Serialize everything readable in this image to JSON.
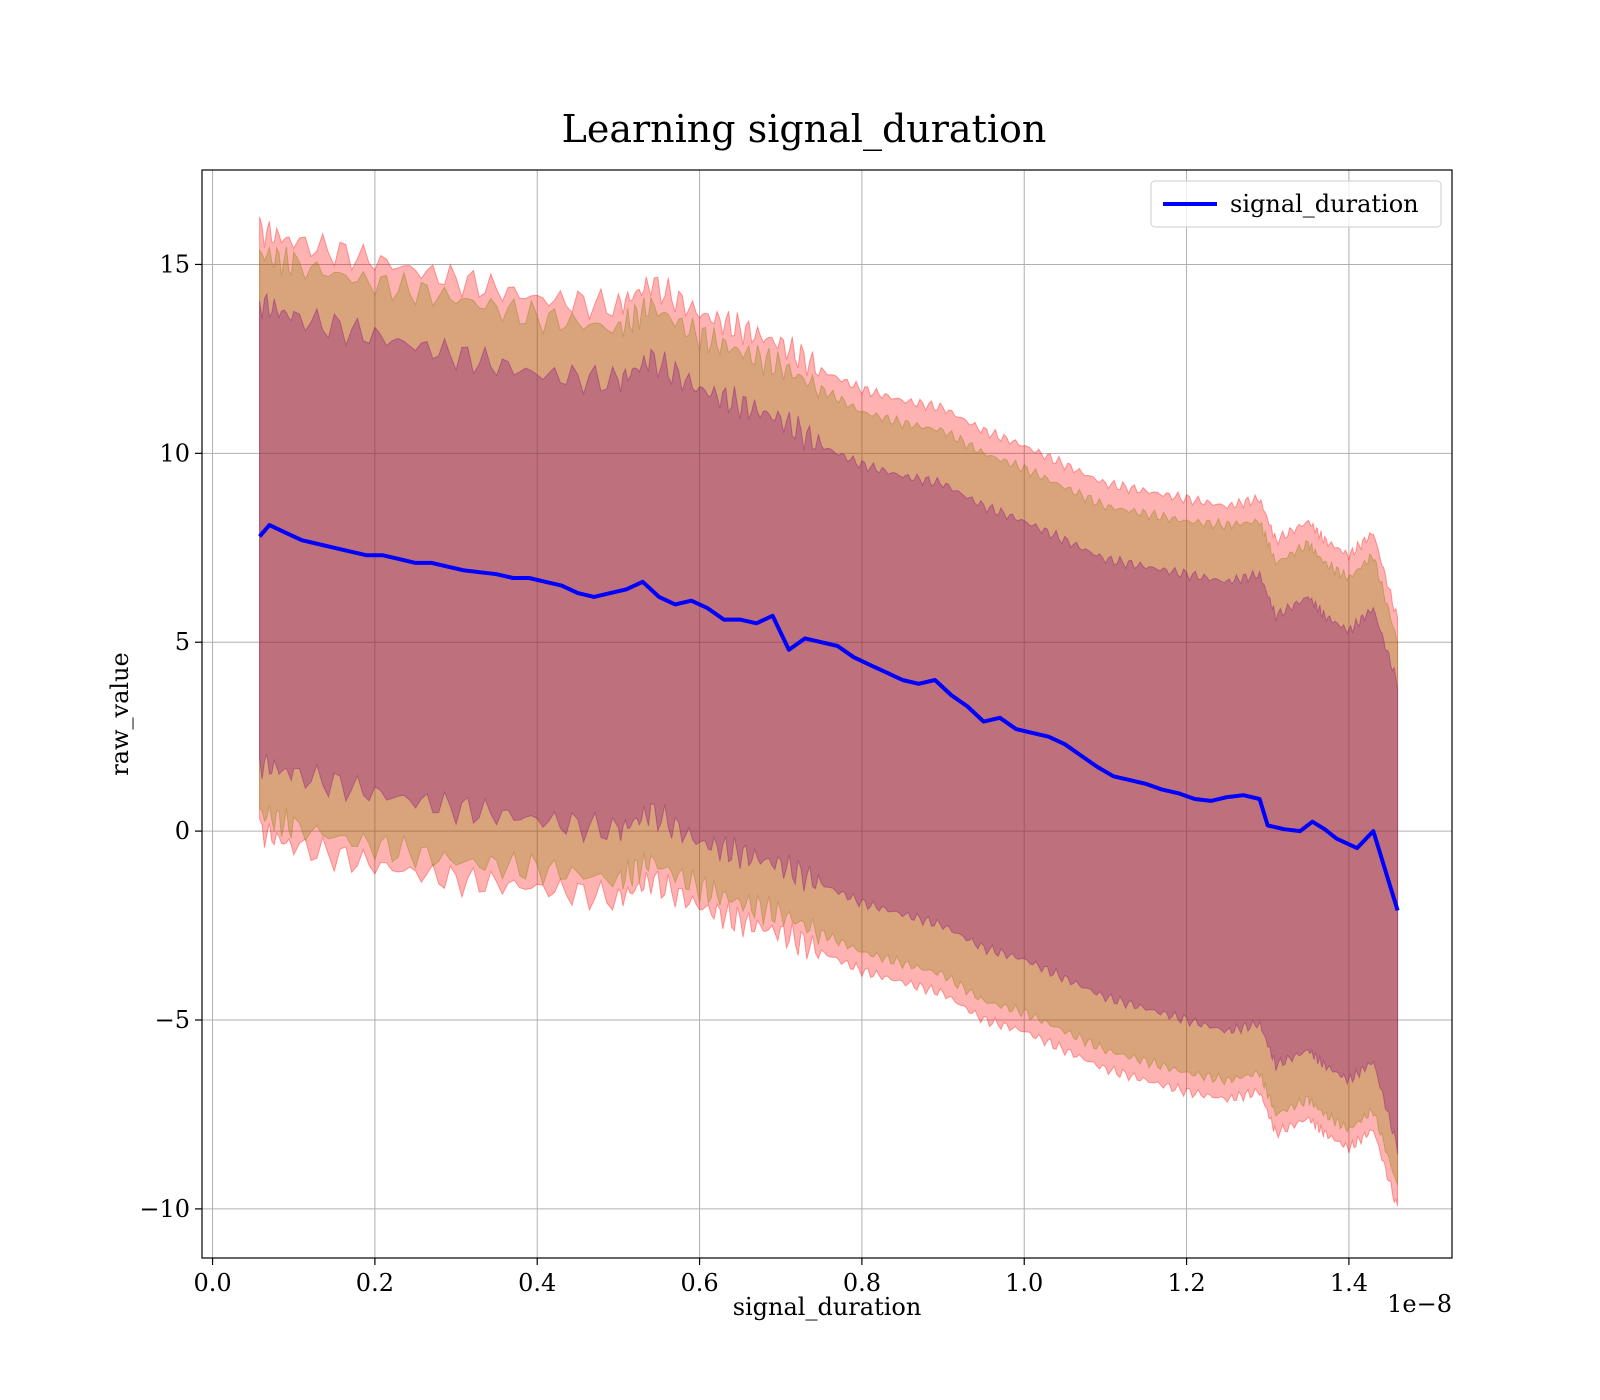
{
  "chart_data": {
    "type": "line",
    "title": "Learning signal_duration",
    "xlabel": "signal_duration",
    "ylabel": "raw_value",
    "x_offset_label": "1e−8",
    "xlim": [
      -0.013,
      1.527
    ],
    "ylim": [
      -11.3,
      17.5
    ],
    "grid": true,
    "legend_position": "top-right",
    "x_ticks": [
      0.0,
      0.2,
      0.4,
      0.6,
      0.8,
      1.0,
      1.2,
      1.4
    ],
    "x_tick_labels": [
      "0.0",
      "0.2",
      "0.4",
      "0.6",
      "0.8",
      "1.0",
      "1.2",
      "1.4"
    ],
    "y_ticks": [
      -10,
      -5,
      0,
      5,
      10,
      15
    ],
    "y_tick_labels": [
      "−10",
      "−5",
      "0",
      "5",
      "10",
      "15"
    ],
    "colors": {
      "line": "#0000ff",
      "outer_band": "#ff0000",
      "middle_band": "#808000",
      "inner_band": "#800080",
      "grid": "#b0b0b0"
    },
    "series": [
      {
        "name": "signal_duration",
        "x": [
          0.058,
          0.07,
          0.09,
          0.11,
          0.13,
          0.15,
          0.17,
          0.19,
          0.21,
          0.23,
          0.25,
          0.27,
          0.29,
          0.31,
          0.33,
          0.35,
          0.37,
          0.39,
          0.41,
          0.43,
          0.45,
          0.47,
          0.49,
          0.51,
          0.53,
          0.55,
          0.57,
          0.59,
          0.61,
          0.63,
          0.65,
          0.67,
          0.69,
          0.71,
          0.73,
          0.75,
          0.77,
          0.79,
          0.81,
          0.83,
          0.85,
          0.87,
          0.89,
          0.91,
          0.93,
          0.95,
          0.97,
          0.99,
          1.01,
          1.03,
          1.05,
          1.07,
          1.09,
          1.11,
          1.13,
          1.15,
          1.17,
          1.19,
          1.21,
          1.23,
          1.25,
          1.27,
          1.29,
          1.3,
          1.32,
          1.34,
          1.355,
          1.37,
          1.385,
          1.41,
          1.43,
          1.46
        ],
        "y": [
          7.8,
          8.1,
          7.9,
          7.7,
          7.6,
          7.5,
          7.4,
          7.3,
          7.3,
          7.2,
          7.1,
          7.1,
          7.0,
          6.9,
          6.85,
          6.8,
          6.7,
          6.7,
          6.6,
          6.5,
          6.3,
          6.2,
          6.3,
          6.4,
          6.6,
          6.2,
          6.0,
          6.1,
          5.9,
          5.6,
          5.6,
          5.5,
          5.7,
          4.8,
          5.1,
          5.0,
          4.9,
          4.6,
          4.4,
          4.2,
          4.0,
          3.9,
          4.0,
          3.6,
          3.3,
          2.9,
          3.0,
          2.7,
          2.6,
          2.5,
          2.3,
          2.0,
          1.7,
          1.45,
          1.35,
          1.25,
          1.1,
          1.0,
          0.85,
          0.8,
          0.9,
          0.95,
          0.85,
          0.15,
          0.05,
          0.0,
          0.25,
          0.05,
          -0.2,
          -0.45,
          0.0,
          -2.1
        ]
      }
    ],
    "bands": [
      {
        "x": [
          0.058,
          0.1,
          0.2,
          0.3,
          0.4,
          0.5,
          0.54,
          0.6,
          0.65,
          0.7,
          0.75,
          0.8,
          0.85,
          0.9,
          0.95,
          1.0,
          1.05,
          1.1,
          1.15,
          1.2,
          1.25,
          1.29,
          1.31,
          1.35,
          1.37,
          1.4,
          1.43,
          1.46
        ],
        "upper": [
          15.9,
          15.6,
          15.1,
          14.6,
          14.1,
          13.9,
          14.5,
          13.7,
          13.3,
          12.9,
          12.2,
          11.7,
          11.4,
          11.2,
          10.6,
          10.2,
          9.7,
          9.2,
          9.0,
          8.8,
          8.6,
          8.8,
          7.7,
          8.2,
          7.7,
          7.3,
          7.9,
          5.6
        ],
        "lower": [
          0.0,
          -0.4,
          -0.9,
          -1.3,
          -1.5,
          -1.8,
          -1.3,
          -2.0,
          -2.4,
          -2.7,
          -3.2,
          -3.7,
          -4.0,
          -4.3,
          -5.0,
          -5.3,
          -5.8,
          -6.3,
          -6.6,
          -6.9,
          -7.1,
          -6.9,
          -8.0,
          -7.6,
          -8.0,
          -8.4,
          -7.9,
          -10.0
        ]
      },
      {
        "x": [
          0.058,
          0.1,
          0.2,
          0.3,
          0.4,
          0.5,
          0.54,
          0.6,
          0.65,
          0.7,
          0.75,
          0.8,
          0.85,
          0.9,
          0.95,
          1.0,
          1.05,
          1.1,
          1.15,
          1.2,
          1.25,
          1.29,
          1.31,
          1.35,
          1.37,
          1.4,
          1.43,
          1.46
        ],
        "upper": [
          15.3,
          15.0,
          14.5,
          14.1,
          13.6,
          13.3,
          13.9,
          13.1,
          12.7,
          12.3,
          11.7,
          11.1,
          10.8,
          10.6,
          10.0,
          9.6,
          9.1,
          8.6,
          8.4,
          8.2,
          8.1,
          8.2,
          7.1,
          7.6,
          7.1,
          6.7,
          7.3,
          5.0
        ],
        "lower": [
          0.5,
          0.1,
          -0.4,
          -0.8,
          -1.0,
          -1.3,
          -0.8,
          -1.5,
          -1.9,
          -2.2,
          -2.7,
          -3.2,
          -3.5,
          -3.8,
          -4.5,
          -4.8,
          -5.3,
          -5.8,
          -6.1,
          -6.4,
          -6.6,
          -6.4,
          -7.5,
          -7.1,
          -7.5,
          -7.9,
          -7.4,
          -9.4
        ]
      },
      {
        "x": [
          0.058,
          0.1,
          0.2,
          0.3,
          0.4,
          0.5,
          0.54,
          0.6,
          0.65,
          0.7,
          0.75,
          0.8,
          0.85,
          0.9,
          0.95,
          1.0,
          1.05,
          1.1,
          1.15,
          1.2,
          1.25,
          1.29,
          1.31,
          1.35,
          1.37,
          1.4,
          1.43,
          1.46
        ],
        "upper": [
          14.0,
          13.6,
          13.1,
          12.6,
          12.1,
          11.9,
          12.5,
          11.7,
          11.3,
          10.9,
          10.2,
          9.7,
          9.4,
          9.2,
          8.6,
          8.2,
          7.7,
          7.2,
          7.0,
          6.8,
          6.6,
          6.8,
          5.7,
          6.2,
          5.7,
          5.3,
          5.9,
          3.9
        ],
        "lower": [
          1.8,
          1.5,
          1.0,
          0.6,
          0.3,
          0.0,
          0.5,
          -0.3,
          -0.6,
          -0.9,
          -1.4,
          -1.9,
          -2.2,
          -2.5,
          -3.1,
          -3.4,
          -3.9,
          -4.4,
          -4.7,
          -5.0,
          -5.3,
          -5.1,
          -6.2,
          -5.8,
          -6.2,
          -6.6,
          -6.1,
          -8.4
        ]
      }
    ]
  }
}
